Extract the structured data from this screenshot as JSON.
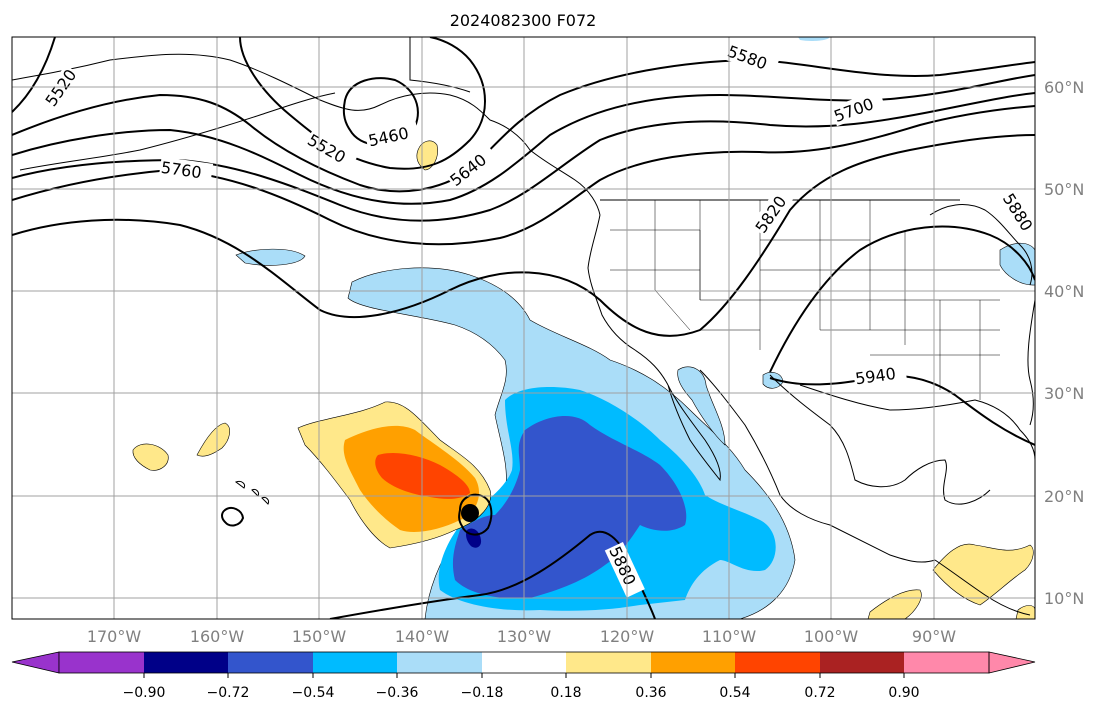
{
  "title": "2024082300 F072",
  "map": {
    "lon_labels": [
      "170°W",
      "160°W",
      "150°W",
      "140°W",
      "130°W",
      "120°W",
      "110°W",
      "100°W",
      "90°W"
    ],
    "lat_labels": [
      "60°N",
      "50°N",
      "40°N",
      "30°N",
      "20°N",
      "10°N"
    ],
    "contour_labels": [
      "5520",
      "5460",
      "5520",
      "5580",
      "5640",
      "5700",
      "5760",
      "5820",
      "5880",
      "5940",
      "5880"
    ],
    "storm_marker": "tropical-cyclone-center"
  },
  "colorbar": {
    "tick_labels": [
      "−0.90",
      "−0.72",
      "−0.54",
      "−0.36",
      "−0.18",
      "0.18",
      "0.36",
      "0.54",
      "0.72",
      "0.90"
    ],
    "colors": [
      "#9933cc",
      "#000088",
      "#3355cc",
      "#00bbff",
      "#aaddf8",
      "#ffffff",
      "#ffe88a",
      "#ffa000",
      "#ff4400",
      "#aa2222",
      "#ff88aa"
    ]
  }
}
